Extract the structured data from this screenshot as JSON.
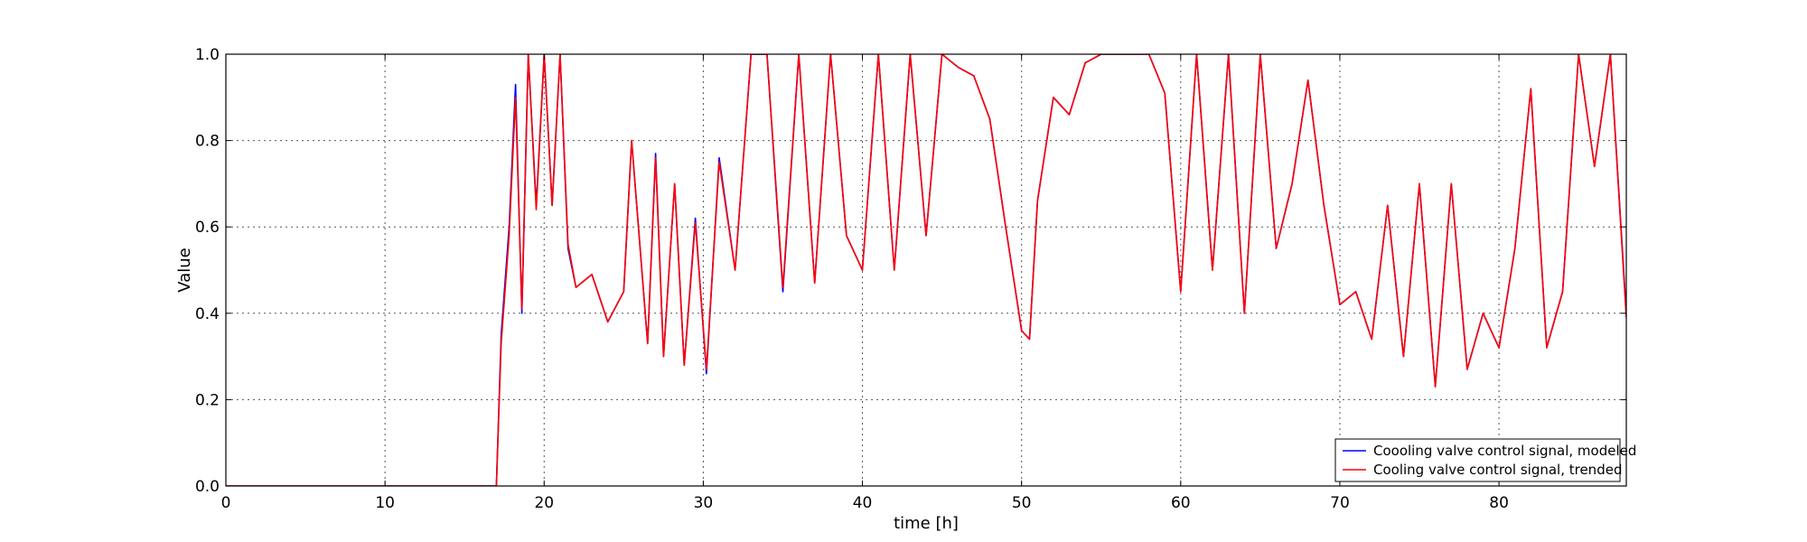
{
  "chart_data": {
    "type": "line",
    "title": "",
    "xlabel": "time [h]",
    "ylabel": "Value",
    "xlim": [
      0,
      88
    ],
    "ylim": [
      0,
      1
    ],
    "xticks": [
      0,
      10,
      20,
      30,
      40,
      50,
      60,
      70,
      80
    ],
    "yticks": [
      0.0,
      0.2,
      0.4,
      0.6,
      0.8,
      1.0
    ],
    "grid": true,
    "legend_position": "lower-right",
    "series": [
      {
        "name": "Coooling valve control signal, modeled",
        "color": "#0000ff",
        "x": [
          0,
          17,
          17.3,
          17.8,
          18.2,
          18.6,
          19.0,
          19.5,
          20.0,
          20.5,
          21.0,
          21.5,
          22.0,
          23.0,
          24.0,
          25.0,
          25.5,
          26.5,
          27.0,
          27.5,
          28.2,
          28.8,
          29.5,
          30.2,
          31.0,
          32.0,
          33.0,
          34.0,
          35.0,
          36.0,
          37.0,
          38.0,
          39.0,
          40.0,
          41.0,
          42.0,
          43.0,
          44.0,
          45.0,
          46.0,
          47.0,
          48.0,
          49.0,
          50.0,
          50.5,
          51.0,
          52.0,
          53.0,
          54.0,
          55.0,
          58.0,
          59.0,
          60.0,
          61.0,
          62.0,
          63.0,
          64.0,
          65.0,
          66.0,
          67.0,
          68.0,
          69.0,
          70.0,
          71.0,
          72.0,
          73.0,
          74.0,
          75.0,
          76.0,
          77.0,
          78.0,
          79.0,
          80.0,
          81.0,
          82.0,
          83.0,
          84.0,
          85.0,
          86.0,
          87.0,
          88.0
        ],
        "y": [
          0,
          0,
          0.35,
          0.6,
          0.93,
          0.4,
          1.0,
          0.65,
          1.0,
          0.65,
          1.0,
          0.55,
          0.46,
          0.49,
          0.38,
          0.45,
          0.8,
          0.33,
          0.77,
          0.3,
          0.7,
          0.28,
          0.62,
          0.26,
          0.76,
          0.5,
          1.0,
          1.0,
          0.45,
          1.0,
          0.47,
          1.0,
          0.58,
          0.5,
          1.0,
          0.5,
          1.0,
          0.58,
          1.0,
          0.97,
          0.95,
          0.85,
          0.6,
          0.36,
          0.34,
          0.66,
          0.9,
          0.86,
          0.98,
          1.0,
          1.0,
          0.91,
          0.45,
          1.0,
          0.5,
          1.0,
          0.4,
          1.0,
          0.55,
          0.7,
          0.94,
          0.65,
          0.42,
          0.45,
          0.34,
          0.65,
          0.3,
          0.7,
          0.23,
          0.7,
          0.27,
          0.4,
          0.32,
          0.55,
          0.92,
          0.32,
          0.45,
          1.0,
          0.74,
          1.0,
          0.4
        ]
      },
      {
        "name": "Cooling valve control signal, trended",
        "color": "#ff0000",
        "x": [
          0,
          17,
          17.3,
          17.8,
          18.2,
          18.6,
          19.0,
          19.5,
          20.0,
          20.5,
          21.0,
          21.5,
          22.0,
          23.0,
          24.0,
          25.0,
          25.5,
          26.5,
          27.0,
          27.5,
          28.2,
          28.8,
          29.5,
          30.2,
          31.0,
          32.0,
          33.0,
          34.0,
          35.0,
          36.0,
          37.0,
          38.0,
          39.0,
          40.0,
          41.0,
          42.0,
          43.0,
          44.0,
          45.0,
          46.0,
          47.0,
          48.0,
          49.0,
          50.0,
          50.5,
          51.0,
          52.0,
          53.0,
          54.0,
          55.0,
          58.0,
          59.0,
          60.0,
          61.0,
          62.0,
          63.0,
          64.0,
          65.0,
          66.0,
          67.0,
          68.0,
          69.0,
          70.0,
          71.0,
          72.0,
          73.0,
          74.0,
          75.0,
          76.0,
          77.0,
          78.0,
          79.0,
          80.0,
          81.0,
          82.0,
          83.0,
          84.0,
          85.0,
          86.0,
          87.0,
          88.0
        ],
        "y": [
          0,
          0,
          0.33,
          0.58,
          0.9,
          0.41,
          1.0,
          0.64,
          1.0,
          0.65,
          1.0,
          0.56,
          0.46,
          0.49,
          0.38,
          0.45,
          0.8,
          0.33,
          0.76,
          0.3,
          0.7,
          0.28,
          0.61,
          0.27,
          0.75,
          0.5,
          1.0,
          1.0,
          0.46,
          1.0,
          0.47,
          1.0,
          0.58,
          0.5,
          1.0,
          0.5,
          1.0,
          0.58,
          1.0,
          0.97,
          0.95,
          0.85,
          0.6,
          0.36,
          0.34,
          0.66,
          0.9,
          0.86,
          0.98,
          1.0,
          1.0,
          0.91,
          0.45,
          1.0,
          0.5,
          1.0,
          0.4,
          1.0,
          0.55,
          0.7,
          0.94,
          0.65,
          0.42,
          0.45,
          0.34,
          0.65,
          0.3,
          0.7,
          0.23,
          0.7,
          0.27,
          0.4,
          0.32,
          0.55,
          0.92,
          0.32,
          0.45,
          1.0,
          0.74,
          1.0,
          0.39
        ]
      }
    ]
  }
}
